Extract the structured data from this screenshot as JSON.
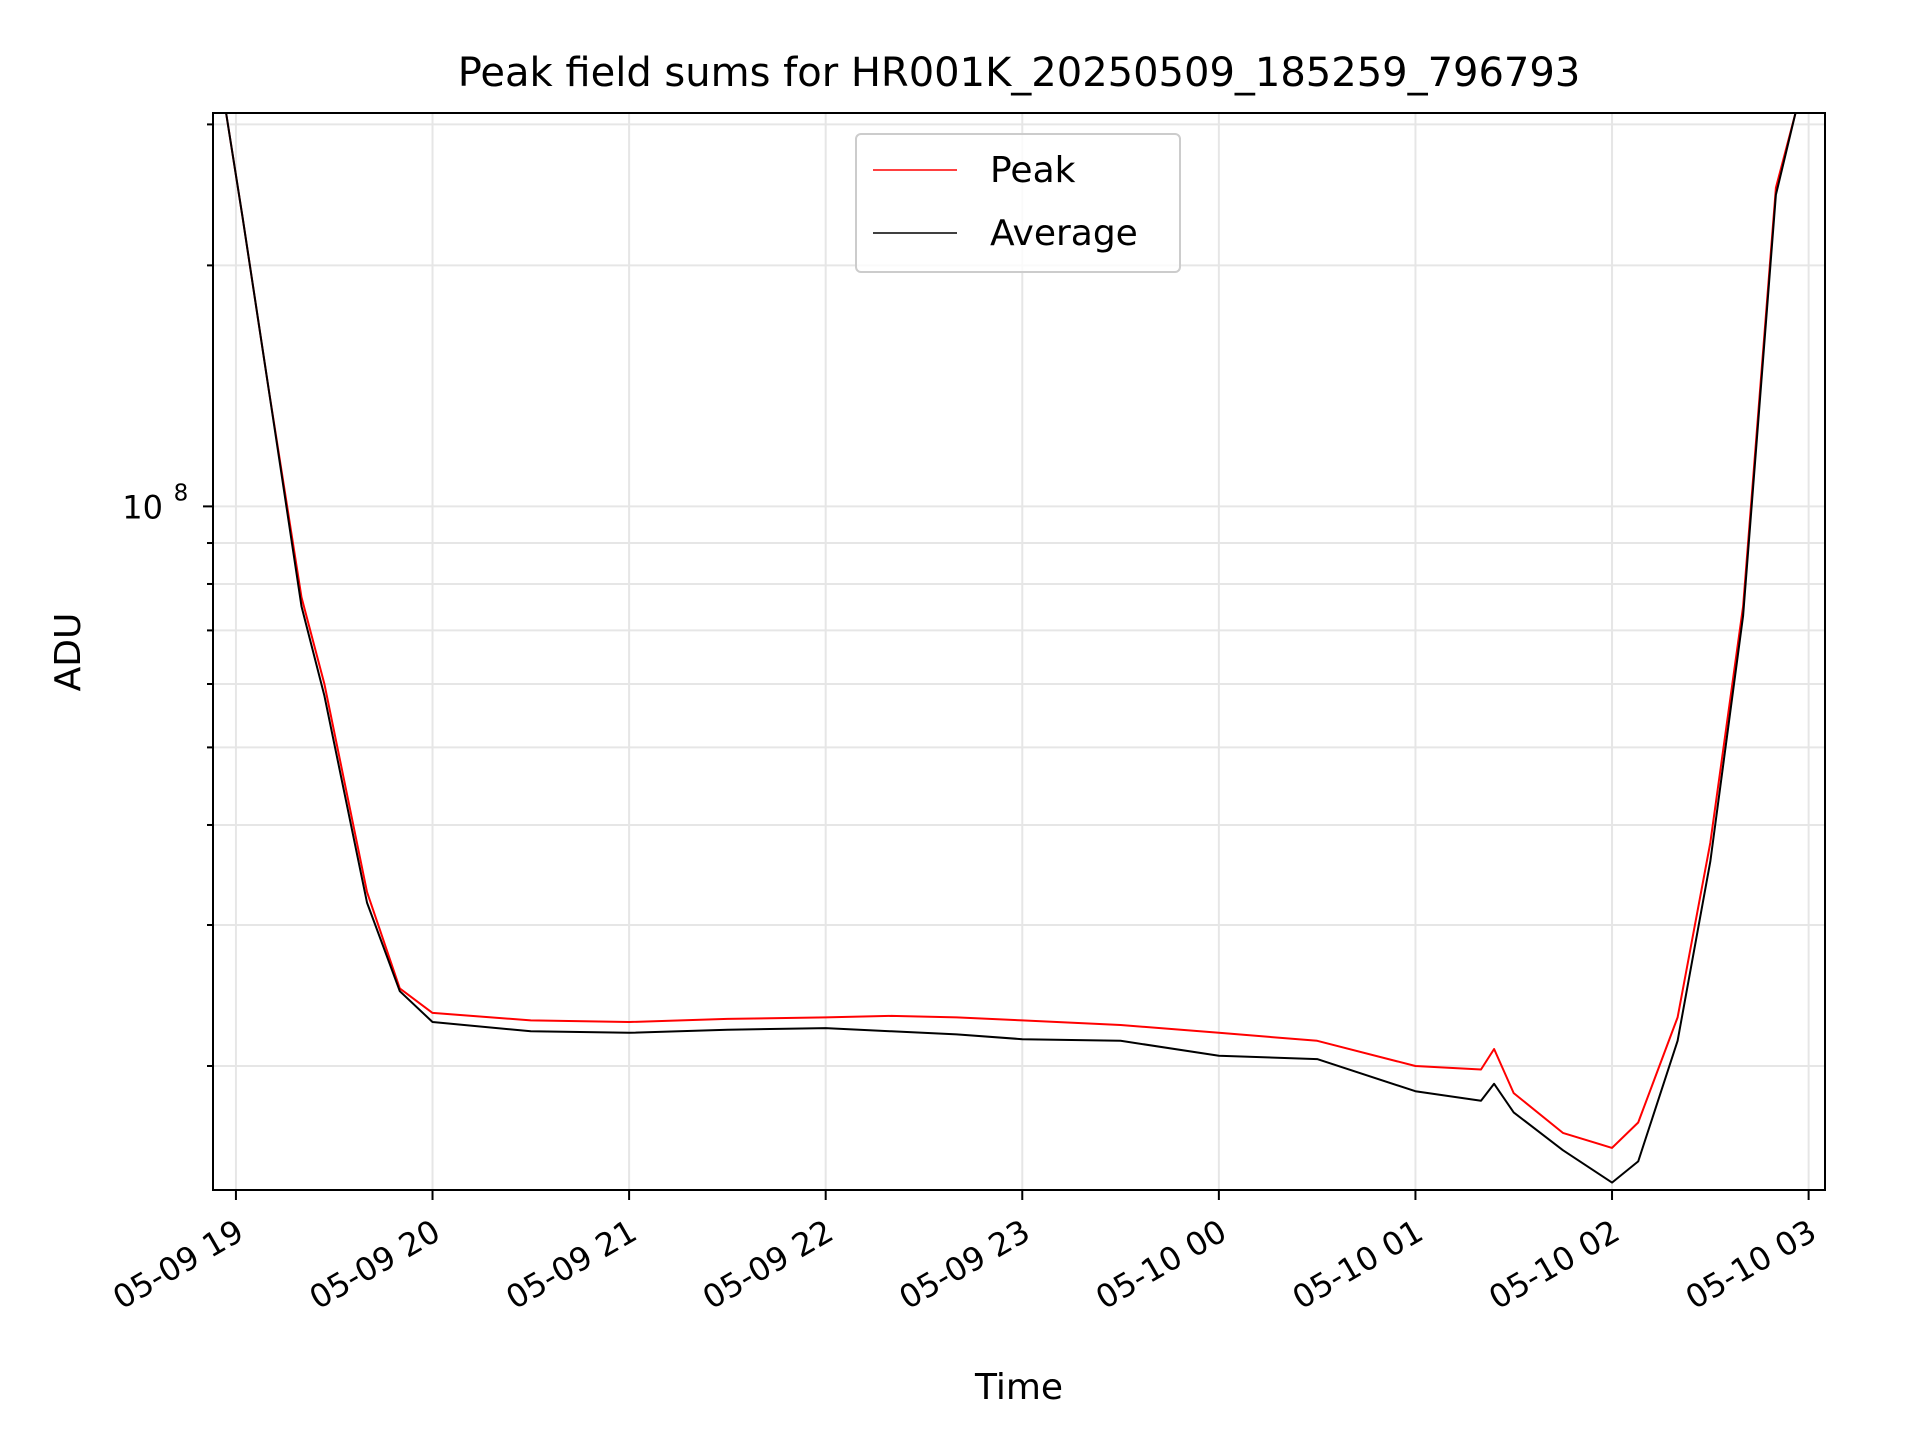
{
  "chart_data": {
    "type": "line",
    "title": "Peak field sums for HR001K_20250509_185259_796793",
    "xlabel": "Time",
    "ylabel": "ADU",
    "y_scale": "log",
    "y_major_tick": {
      "value": 100000000,
      "base": "10",
      "exponent": "8"
    },
    "ylim": [
      14000000,
      310000000
    ],
    "xlim": [
      "2025-05-09 18:53",
      "2025-05-10 03:05"
    ],
    "x_ticks": [
      {
        "t": "2025-05-09 19:00",
        "label": "05-09 19"
      },
      {
        "t": "2025-05-09 20:00",
        "label": "05-09 20"
      },
      {
        "t": "2025-05-09 21:00",
        "label": "05-09 21"
      },
      {
        "t": "2025-05-09 22:00",
        "label": "05-09 22"
      },
      {
        "t": "2025-05-09 23:00",
        "label": "05-09 23"
      },
      {
        "t": "2025-05-10 00:00",
        "label": "05-10 00"
      },
      {
        "t": "2025-05-10 01:00",
        "label": "05-10 01"
      },
      {
        "t": "2025-05-10 02:00",
        "label": "05-10 02"
      },
      {
        "t": "2025-05-10 03:00",
        "label": "05-10 03"
      }
    ],
    "grid": true,
    "legend_position": "upper center",
    "series": [
      {
        "name": "Peak",
        "color": "#ff0000",
        "points": [
          [
            "2025-05-09 18:57",
            320000000
          ],
          [
            "2025-05-09 19:02",
            230000000
          ],
          [
            "2025-05-09 19:10",
            140000000
          ],
          [
            "2025-05-09 19:20",
            77000000
          ],
          [
            "2025-05-09 19:27",
            60000000
          ],
          [
            "2025-05-09 19:40",
            33000000
          ],
          [
            "2025-05-09 19:50",
            25000000
          ],
          [
            "2025-05-09 20:00",
            23300000
          ],
          [
            "2025-05-09 20:30",
            22800000
          ],
          [
            "2025-05-09 21:00",
            22700000
          ],
          [
            "2025-05-09 21:30",
            22900000
          ],
          [
            "2025-05-09 22:00",
            23000000
          ],
          [
            "2025-05-09 22:20",
            23100000
          ],
          [
            "2025-05-09 22:40",
            23000000
          ],
          [
            "2025-05-09 23:00",
            22800000
          ],
          [
            "2025-05-09 23:30",
            22500000
          ],
          [
            "2025-05-10 00:00",
            22000000
          ],
          [
            "2025-05-10 00:30",
            21500000
          ],
          [
            "2025-05-10 01:00",
            20000000
          ],
          [
            "2025-05-10 01:20",
            19800000
          ],
          [
            "2025-05-10 01:24",
            21000000
          ],
          [
            "2025-05-10 01:30",
            18500000
          ],
          [
            "2025-05-10 01:45",
            16500000
          ],
          [
            "2025-05-10 02:00",
            15800000
          ],
          [
            "2025-05-10 02:08",
            17000000
          ],
          [
            "2025-05-10 02:20",
            23000000
          ],
          [
            "2025-05-10 02:30",
            38000000
          ],
          [
            "2025-05-10 02:40",
            75000000
          ],
          [
            "2025-05-10 02:50",
            250000000
          ],
          [
            "2025-05-10 02:56",
            320000000
          ]
        ]
      },
      {
        "name": "Average",
        "color": "#000000",
        "points": [
          [
            "2025-05-09 18:57",
            320000000
          ],
          [
            "2025-05-09 19:02",
            230000000
          ],
          [
            "2025-05-09 19:10",
            140000000
          ],
          [
            "2025-05-09 19:20",
            75000000
          ],
          [
            "2025-05-09 19:27",
            58000000
          ],
          [
            "2025-05-09 19:40",
            32000000
          ],
          [
            "2025-05-09 19:50",
            24800000
          ],
          [
            "2025-05-09 20:00",
            22700000
          ],
          [
            "2025-05-09 20:30",
            22100000
          ],
          [
            "2025-05-09 21:00",
            22000000
          ],
          [
            "2025-05-09 21:30",
            22200000
          ],
          [
            "2025-05-09 22:00",
            22300000
          ],
          [
            "2025-05-09 22:20",
            22100000
          ],
          [
            "2025-05-09 22:40",
            21900000
          ],
          [
            "2025-05-09 23:00",
            21600000
          ],
          [
            "2025-05-09 23:30",
            21500000
          ],
          [
            "2025-05-10 00:00",
            20600000
          ],
          [
            "2025-05-10 00:30",
            20400000
          ],
          [
            "2025-05-10 01:00",
            18600000
          ],
          [
            "2025-05-10 01:20",
            18100000
          ],
          [
            "2025-05-10 01:24",
            19000000
          ],
          [
            "2025-05-10 01:30",
            17500000
          ],
          [
            "2025-05-10 01:45",
            15700000
          ],
          [
            "2025-05-10 02:00",
            14300000
          ],
          [
            "2025-05-10 02:08",
            15200000
          ],
          [
            "2025-05-10 02:20",
            21500000
          ],
          [
            "2025-05-10 02:30",
            36000000
          ],
          [
            "2025-05-10 02:40",
            73000000
          ],
          [
            "2025-05-10 02:50",
            245000000
          ],
          [
            "2025-05-10 02:56",
            320000000
          ]
        ]
      }
    ]
  }
}
